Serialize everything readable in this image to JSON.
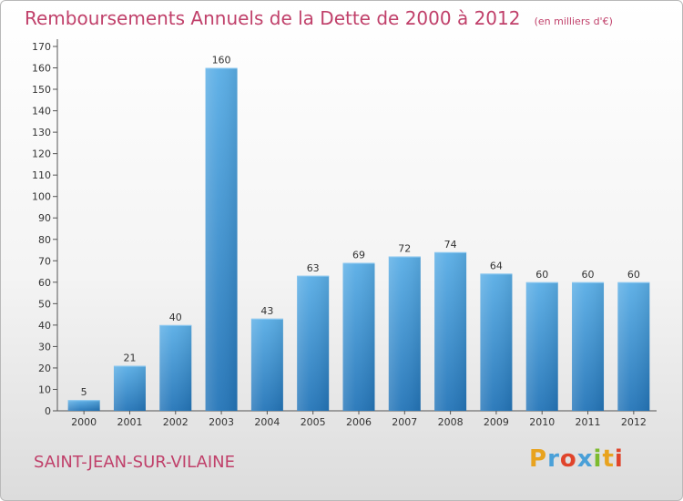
{
  "chart_data": {
    "type": "bar",
    "title": "Remboursements Annuels de la Dette de 2000 à 2012",
    "unit_note": "(en milliers d'€)",
    "categories": [
      "2000",
      "2001",
      "2002",
      "2003",
      "2004",
      "2005",
      "2006",
      "2007",
      "2008",
      "2009",
      "2010",
      "2011",
      "2012"
    ],
    "values": [
      5,
      21,
      40,
      160,
      43,
      63,
      69,
      72,
      74,
      64,
      60,
      60,
      60
    ],
    "ylim": [
      0,
      170
    ],
    "yticks": [
      0,
      10,
      20,
      30,
      40,
      50,
      60,
      70,
      80,
      90,
      100,
      110,
      120,
      130,
      140,
      150,
      160,
      170
    ],
    "grid": false,
    "bar_color_top": "#5aaee6",
    "bar_color_bottom": "#2475b8"
  },
  "footer": {
    "commune": "SAINT-JEAN-SUR-VILAINE",
    "logo_letters": [
      "P",
      "r",
      "o",
      "x",
      "i",
      "t",
      "i"
    ],
    "logo_colors": [
      "#e8a31f",
      "#4aa0d8",
      "#e0442b",
      "#4aa0d8",
      "#7dbb2f",
      "#e8a31f",
      "#e0442b"
    ]
  },
  "colors": {
    "accent": "#c0406a"
  }
}
